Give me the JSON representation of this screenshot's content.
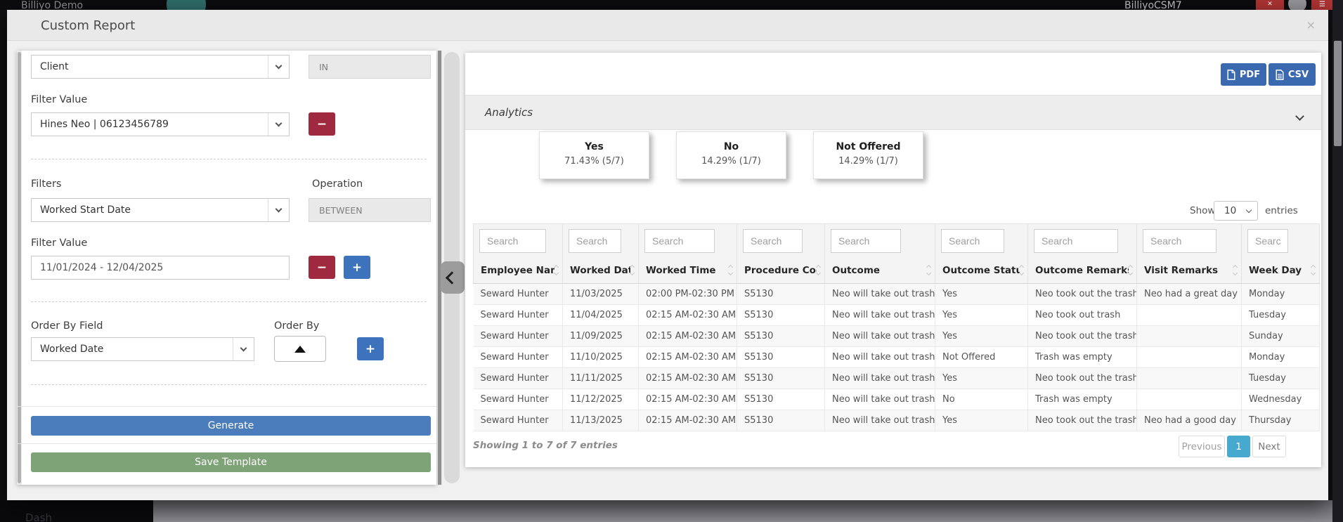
{
  "background": {
    "brand_left": "Billiyo Demo",
    "brand_right": "BilliyoCSM7",
    "bottom_nav_text": "Dash"
  },
  "modal": {
    "title": "Custom Report",
    "close_label": "×"
  },
  "filters_panel": {
    "field_select_value": "Client",
    "field_operation": "IN",
    "filter_value_label": "Filter Value",
    "client_value_select": "Hines Neo | 06123456789",
    "remove_label": "−",
    "add_label": "+",
    "filters_label": "Filters",
    "operation_label": "Operation",
    "date_field_select_value": "Worked Start Date",
    "date_operation": "BETWEEN",
    "date_filter_value_label": "Filter Value",
    "date_range_value": "11/01/2024 - 12/04/2025",
    "order_by_field_label": "Order By Field",
    "order_by_label": "Order By",
    "order_by_field_value": "Worked Date",
    "generate_label": "Generate",
    "save_template_label": "Save Template"
  },
  "report_panel": {
    "pdf_label": "PDF",
    "csv_label": "CSV",
    "analytics_title": "Analytics",
    "analytics_cards": [
      {
        "label": "Yes",
        "value": "71.43% (5/7)"
      },
      {
        "label": "No",
        "value": "14.29% (1/7)"
      },
      {
        "label": "Not Offered",
        "value": "14.29% (1/7)"
      }
    ],
    "show_label": "Show",
    "page_size": "10",
    "entries_label": "entries",
    "search_placeholder": "Search",
    "columns": [
      "Employee Name",
      "Worked Date",
      "Worked Time",
      "Procedure Code",
      "Outcome",
      "Outcome Status",
      "Outcome Remarks",
      "Visit Remarks",
      "Week Day"
    ],
    "rows": [
      [
        "Seward Hunter",
        "11/03/2025",
        "02:00 PM-02:30 PM",
        "S5130",
        "Neo will take out trash",
        "Yes",
        "Neo took out the trash",
        "Neo had a great day",
        "Monday"
      ],
      [
        "Seward Hunter",
        "11/04/2025",
        "02:15 AM-02:30 AM",
        "S5130",
        "Neo will take out trash",
        "Yes",
        "Neo took out trash",
        "",
        "Tuesday"
      ],
      [
        "Seward Hunter",
        "11/09/2025",
        "02:15 AM-02:30 AM",
        "S5130",
        "Neo will take out trash",
        "Yes",
        "Neo took out the trash",
        "",
        "Sunday"
      ],
      [
        "Seward Hunter",
        "11/10/2025",
        "02:15 AM-02:30 AM",
        "S5130",
        "Neo will take out trash",
        "Not Offered",
        "Trash was empty",
        "",
        "Monday"
      ],
      [
        "Seward Hunter",
        "11/11/2025",
        "02:15 AM-02:30 AM",
        "S5130",
        "Neo will take out trash",
        "Yes",
        "Neo took out the trash",
        "",
        "Tuesday"
      ],
      [
        "Seward Hunter",
        "11/12/2025",
        "02:15 AM-02:30 AM",
        "S5130",
        "Neo will take out trash",
        "No",
        "Trash was empty",
        "",
        "Wednesday"
      ],
      [
        "Seward Hunter",
        "11/13/2025",
        "02:15 AM-02:30 AM",
        "S5130",
        "Neo will take out trash",
        "Yes",
        "Neo took out the trash",
        "Neo had a good day",
        "Thursday"
      ]
    ],
    "summary": "Showing 1 to 7 of 7 entries",
    "pagination": {
      "previous": "Previous",
      "current": "1",
      "next": "Next"
    }
  }
}
